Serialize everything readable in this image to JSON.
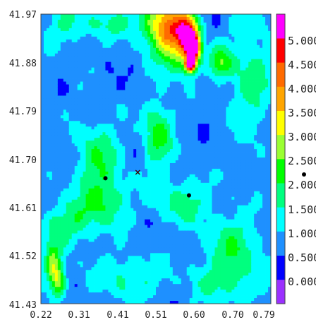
{
  "chart_data": {
    "type": "heatmap",
    "title": "",
    "xlabel": "",
    "ylabel": "",
    "xlim": [
      0.22,
      0.79
    ],
    "ylim": [
      41.43,
      41.97
    ],
    "x_ticks": [
      "0.22",
      "0.31",
      "0.41",
      "0.51",
      "0.60",
      "0.70",
      "0.79"
    ],
    "y_ticks": [
      "41.97",
      "41.88",
      "41.79",
      "41.70",
      "41.61",
      "41.52",
      "41.43"
    ],
    "colorbar": {
      "levels": [
        -0.5,
        0.0,
        0.5,
        1.0,
        1.5,
        2.0,
        2.5,
        3.0,
        3.5,
        4.0,
        4.5,
        5.0,
        5.5
      ],
      "labels": [
        "0.000",
        "0.500",
        "1.000",
        "1.500",
        "2.000",
        "2.500",
        "3.000",
        "3.500",
        "4.000",
        "4.500",
        "5.000"
      ],
      "colors": [
        "#9b30ff",
        "#0000ff",
        "#1e90ff",
        "#00ffff",
        "#00ff7f",
        "#00ff00",
        "#9aff32",
        "#ffff00",
        "#ffa500",
        "#ff6a00",
        "#ff0000",
        "#ff00ff"
      ]
    },
    "hotspots": [
      {
        "x": 0.52,
        "y": 41.95,
        "v": 2.4,
        "sx": 0.035,
        "sy": 0.035
      },
      {
        "x": 0.555,
        "y": 41.92,
        "v": 2.0,
        "sx": 0.03,
        "sy": 0.04
      },
      {
        "x": 0.585,
        "y": 41.93,
        "v": 3.4,
        "sx": 0.018,
        "sy": 0.03
      },
      {
        "x": 0.6,
        "y": 41.905,
        "v": 3.4,
        "sx": 0.012,
        "sy": 0.02
      },
      {
        "x": 0.59,
        "y": 41.875,
        "v": 4.6,
        "sx": 0.009,
        "sy": 0.009
      },
      {
        "x": 0.665,
        "y": 41.878,
        "v": 1.6,
        "sx": 0.02,
        "sy": 0.02
      },
      {
        "x": 0.51,
        "y": 41.745,
        "v": 1.5,
        "sx": 0.025,
        "sy": 0.045
      },
      {
        "x": 0.36,
        "y": 41.7,
        "v": 1.2,
        "sx": 0.04,
        "sy": 0.05
      },
      {
        "x": 0.25,
        "y": 41.5,
        "v": 1.9,
        "sx": 0.015,
        "sy": 0.03
      },
      {
        "x": 0.265,
        "y": 41.47,
        "v": 1.7,
        "sx": 0.012,
        "sy": 0.02
      },
      {
        "x": 0.29,
        "y": 41.58,
        "v": 1.1,
        "sx": 0.05,
        "sy": 0.03
      },
      {
        "x": 0.38,
        "y": 41.62,
        "v": 1.1,
        "sx": 0.04,
        "sy": 0.03
      },
      {
        "x": 0.57,
        "y": 41.62,
        "v": 1.0,
        "sx": 0.05,
        "sy": 0.03
      },
      {
        "x": 0.74,
        "y": 41.85,
        "v": 1.0,
        "sx": 0.04,
        "sy": 0.08
      },
      {
        "x": 0.7,
        "y": 41.54,
        "v": 1.1,
        "sx": 0.05,
        "sy": 0.04
      },
      {
        "x": 0.68,
        "y": 41.47,
        "v": 0.9,
        "sx": 0.06,
        "sy": 0.03
      },
      {
        "x": 0.44,
        "y": 41.48,
        "v": 0.9,
        "sx": 0.06,
        "sy": 0.03
      },
      {
        "x": 0.28,
        "y": 41.95,
        "v": 0.8,
        "sx": 0.04,
        "sy": 0.03
      },
      {
        "x": 0.4,
        "y": 41.955,
        "v": 0.9,
        "sx": 0.05,
        "sy": 0.02
      }
    ],
    "markers": [
      {
        "x": 0.38,
        "y": 41.664,
        "shape": "dot"
      },
      {
        "x": 0.46,
        "y": 41.675,
        "shape": "x"
      },
      {
        "x": 0.587,
        "y": 41.632,
        "shape": "dot"
      }
    ]
  }
}
